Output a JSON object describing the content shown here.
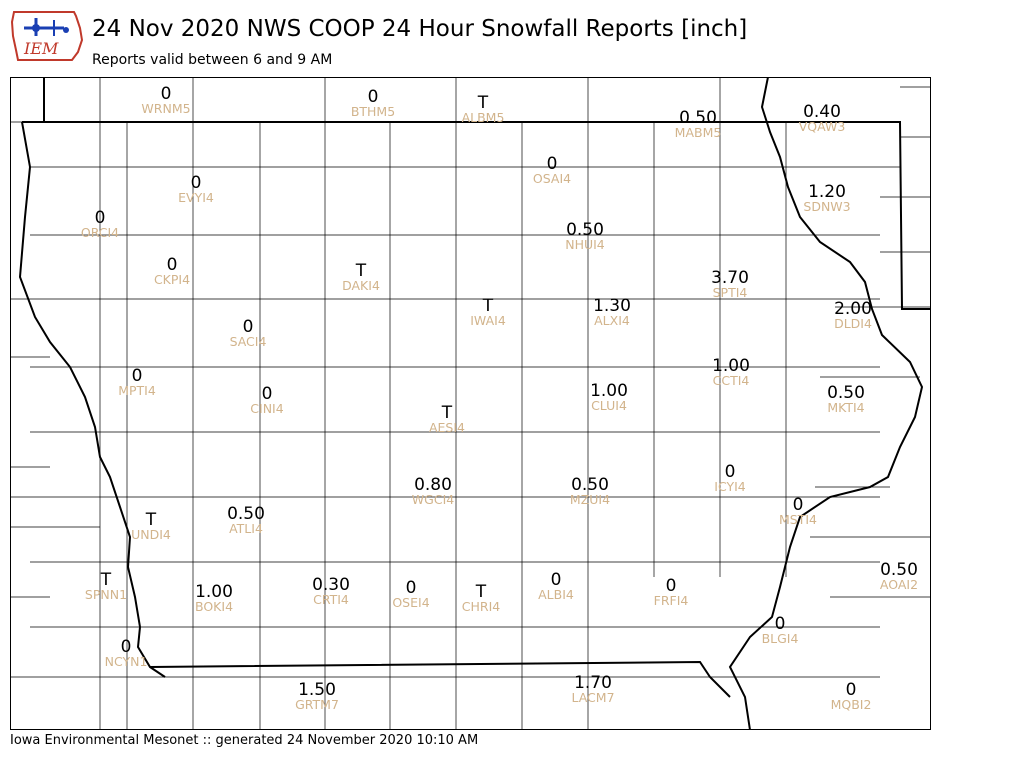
{
  "header": {
    "logo_text": "IEM",
    "title": "24 Nov 2020 NWS COOP 24 Hour Snowfall Reports [inch]",
    "subtitle": "Reports valid between 6 and 9 AM"
  },
  "footer": {
    "text": "Iowa Environmental Mesonet :: generated 24 November 2020 10:10 AM"
  },
  "colors": {
    "station_label": "#d2b48c",
    "value_text": "#000000",
    "county_line": "#000000",
    "logo_red": "#c0392b",
    "logo_blue": "#1a3fb3"
  },
  "stations": [
    {
      "id": "WRNM5",
      "value": "0"
    },
    {
      "id": "BTHM5",
      "value": "0"
    },
    {
      "id": "ALBM5",
      "value": "T"
    },
    {
      "id": "MABM5",
      "value": "0.50"
    },
    {
      "id": "VQAW3",
      "value": "0.40"
    },
    {
      "id": "OSAI4",
      "value": "0"
    },
    {
      "id": "EVYI4",
      "value": "0"
    },
    {
      "id": "SDNW3",
      "value": "1.20"
    },
    {
      "id": "ORCI4",
      "value": "0"
    },
    {
      "id": "NHUI4",
      "value": "0.50"
    },
    {
      "id": "CKPI4",
      "value": "0"
    },
    {
      "id": "DAKI4",
      "value": "T"
    },
    {
      "id": "SPTI4",
      "value": "3.70"
    },
    {
      "id": "IWAI4",
      "value": "T"
    },
    {
      "id": "ALXI4",
      "value": "1.30"
    },
    {
      "id": "DLDI4",
      "value": "2.00"
    },
    {
      "id": "SACI4",
      "value": "0"
    },
    {
      "id": "MPTI4",
      "value": "0"
    },
    {
      "id": "CCTI4",
      "value": "1.00"
    },
    {
      "id": "CINI4",
      "value": "0"
    },
    {
      "id": "CLUI4",
      "value": "1.00"
    },
    {
      "id": "MKTI4",
      "value": "0.50"
    },
    {
      "id": "AESI4",
      "value": "T"
    },
    {
      "id": "ICYI4",
      "value": "0"
    },
    {
      "id": "WGCI4",
      "value": "0.80"
    },
    {
      "id": "MZUI4",
      "value": "0.50"
    },
    {
      "id": "MSTI4",
      "value": "0"
    },
    {
      "id": "UNDI4",
      "value": "T"
    },
    {
      "id": "ATLI4",
      "value": "0.50"
    },
    {
      "id": "AOAI2",
      "value": "0.50"
    },
    {
      "id": "SPNN1",
      "value": "T"
    },
    {
      "id": "BOKI4",
      "value": "1.00"
    },
    {
      "id": "CRTI4",
      "value": "0.30"
    },
    {
      "id": "OSEI4",
      "value": "0"
    },
    {
      "id": "CHRI4",
      "value": "T"
    },
    {
      "id": "ALBI4",
      "value": "0"
    },
    {
      "id": "FRFI4",
      "value": "0"
    },
    {
      "id": "BLGI4",
      "value": "0"
    },
    {
      "id": "NCYN1",
      "value": "0"
    },
    {
      "id": "GRTM7",
      "value": "1.50"
    },
    {
      "id": "LACM7",
      "value": "1.70"
    },
    {
      "id": "MQBI2",
      "value": "0"
    }
  ]
}
